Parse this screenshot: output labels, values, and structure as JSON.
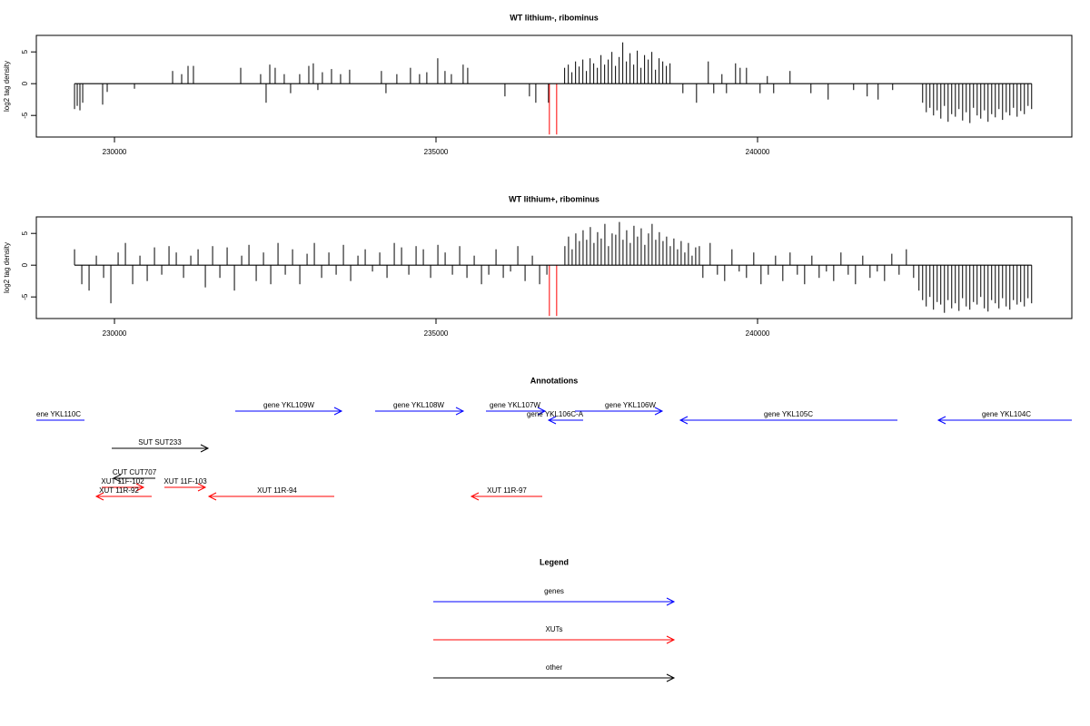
{
  "chart_data": [
    {
      "type": "bar",
      "title": "WT lithium-, ribominus",
      "y_label": "log2 tag density",
      "xlim": [
        228785,
        244887
      ],
      "ylim": [
        -8.4,
        7.6
      ],
      "xticks": [
        230000,
        235000,
        240000
      ],
      "yticks": [
        5,
        0,
        -5
      ],
      "series": [
        {
          "color": "#000000",
          "x": [
            229379,
            229421,
            229463,
            229506,
            229816,
            229887,
            230311,
            230904,
            231045,
            231144,
            231228,
            231963,
            232273,
            232358,
            232415,
            232499,
            232640,
            232739,
            232880,
            233022,
            233092,
            233163,
            233233,
            233375,
            233516,
            233657,
            234151,
            234222,
            234391,
            234603,
            234744,
            234857,
            235027,
            235140,
            235239,
            235422,
            235493,
            236072,
            236453,
            236552,
            236749,
            237000,
            237057,
            237113,
            237170,
            237226,
            237283,
            237339,
            237396,
            237452,
            237509,
            237565,
            237622,
            237678,
            237735,
            237791,
            237848,
            237904,
            237961,
            238017,
            238074,
            238130,
            238187,
            238243,
            238300,
            238356,
            238413,
            238469,
            238526,
            238582,
            238639,
            238839,
            239051,
            239234,
            239319,
            239446,
            239517,
            239658,
            239729,
            239828,
            240039,
            240152,
            240251,
            240505,
            240830,
            241098,
            241494,
            241705,
            241875,
            242101,
            242567,
            242624,
            242680,
            242737,
            242793,
            242850,
            242906,
            242963,
            243019,
            243076,
            243132,
            243189,
            243245,
            243302,
            243358,
            243415,
            243471,
            243528,
            243584,
            243641,
            243697,
            243754,
            243810,
            243867,
            243923,
            243980,
            244036,
            244093,
            244149,
            244206,
            244262
          ],
          "values": [
            -4,
            -3.5,
            -4.2,
            -3,
            -3.3,
            -1.3,
            -0.8,
            2,
            1.5,
            2.8,
            2.8,
            2.5,
            1.5,
            -3,
            3,
            2.5,
            1.5,
            -1.5,
            1.5,
            2.8,
            3.2,
            -1,
            1.8,
            2.3,
            1.5,
            2.2,
            2,
            -1.5,
            1.5,
            2.5,
            1.5,
            1.8,
            4,
            2,
            1.5,
            3,
            2.5,
            -2,
            -2,
            -3,
            -3,
            2.5,
            3,
            1.8,
            3.5,
            2.7,
            3.8,
            2,
            4,
            3.2,
            2.5,
            4.5,
            3,
            3.8,
            5,
            2.8,
            4.2,
            6.5,
            3.5,
            4.8,
            3,
            5.2,
            2.5,
            4.5,
            3.8,
            5,
            2.2,
            4,
            3.5,
            2.8,
            3.2,
            -1.5,
            -3,
            3.5,
            -1.5,
            1.5,
            -1.5,
            3.2,
            2.5,
            2.5,
            -1.5,
            1.2,
            -1.5,
            2,
            -1.5,
            -2.5,
            -1,
            -2,
            -2.5,
            -1,
            -3,
            -4.5,
            -3.8,
            -5,
            -4.2,
            -5.5,
            -3.5,
            -6,
            -4.8,
            -5.2,
            -4,
            -5.8,
            -4.5,
            -6.2,
            -3.8,
            -5,
            -5.5,
            -4.2,
            -6,
            -4.8,
            -5.3,
            -4,
            -5.7,
            -4.5,
            -5,
            -3.8,
            -5.2,
            -4.3,
            -4.8,
            -3.5,
            -4
          ]
        },
        {
          "color": "#ff0000",
          "x": [
            236763,
            236876
          ],
          "values": [
            -8,
            -8
          ]
        }
      ]
    },
    {
      "type": "bar",
      "title": "WT lithium+, ribominus",
      "y_label": "log2 tag density",
      "xlim": [
        228785,
        244887
      ],
      "ylim": [
        -8.4,
        7.6
      ],
      "xticks": [
        230000,
        235000,
        240000
      ],
      "yticks": [
        5,
        0,
        -5
      ],
      "series": [
        {
          "color": "#000000",
          "x": [
            229379,
            229492,
            229605,
            229718,
            229831,
            229944,
            230057,
            230170,
            230283,
            230396,
            230509,
            230622,
            230735,
            230848,
            230961,
            231074,
            231187,
            231300,
            231413,
            231526,
            231639,
            231752,
            231865,
            231978,
            232091,
            232204,
            232317,
            232430,
            232543,
            232656,
            232769,
            232882,
            232995,
            233108,
            233221,
            233334,
            233447,
            233560,
            233673,
            233786,
            233899,
            234012,
            234125,
            234238,
            234351,
            234464,
            234577,
            234690,
            234803,
            234916,
            235029,
            235142,
            235255,
            235368,
            235481,
            235594,
            235707,
            235820,
            235933,
            236046,
            236159,
            236272,
            236385,
            236498,
            236611,
            236724,
            237004,
            237061,
            237117,
            237174,
            237230,
            237287,
            237343,
            237400,
            237456,
            237513,
            237569,
            237626,
            237682,
            237739,
            237795,
            237852,
            237908,
            237965,
            238021,
            238078,
            238134,
            238191,
            238247,
            238304,
            238360,
            238417,
            238473,
            238530,
            238586,
            238643,
            238699,
            238756,
            238812,
            238869,
            238925,
            238982,
            239038,
            239095,
            239150,
            239263,
            239376,
            239489,
            239602,
            239715,
            239828,
            239941,
            240054,
            240167,
            240280,
            240393,
            240506,
            240619,
            240732,
            240845,
            240958,
            241071,
            241184,
            241297,
            241410,
            241523,
            241636,
            241749,
            241862,
            241975,
            242088,
            242201,
            242314,
            242427,
            242510,
            242567,
            242623,
            242680,
            242736,
            242793,
            242849,
            242906,
            242962,
            243019,
            243075,
            243132,
            243188,
            243245,
            243301,
            243358,
            243414,
            243471,
            243527,
            243584,
            243640,
            243697,
            243753,
            243810,
            243866,
            243923,
            243979,
            244036,
            244092,
            244149,
            244205,
            244262
          ],
          "values": [
            2.5,
            -3,
            -4,
            1.5,
            -2,
            -6,
            2,
            3.5,
            -3,
            1.5,
            -2.5,
            2.8,
            -1.5,
            3,
            2,
            -2,
            1.5,
            2.5,
            -3.5,
            3,
            -2,
            2.8,
            -4,
            1.5,
            3.2,
            -2.5,
            2,
            -3,
            3.5,
            -1.5,
            2.5,
            -3,
            1.8,
            3.5,
            -2,
            2,
            -1.5,
            3.2,
            -2.5,
            1.5,
            2.5,
            -1,
            2,
            -2,
            3.5,
            2.8,
            -1.5,
            3,
            2.5,
            -2,
            3.2,
            2,
            -1.5,
            3,
            -2,
            1.5,
            -3,
            -1.5,
            2.5,
            -2,
            -1,
            3,
            -2.5,
            1.5,
            -3,
            -1.5,
            3,
            4.5,
            2.5,
            5,
            3.8,
            5.5,
            4,
            6,
            3.5,
            5.2,
            4.2,
            6.5,
            3,
            5,
            4.8,
            6.8,
            4,
            5.5,
            3.5,
            6.2,
            4.5,
            5.8,
            3.2,
            5,
            6.5,
            4,
            5.2,
            3.8,
            4.5,
            3,
            4.2,
            2.5,
            3.8,
            2,
            3.5,
            1.5,
            2.8,
            3,
            -2,
            3.5,
            -1.5,
            -2.5,
            2.5,
            -1,
            -2,
            2,
            -3,
            -1.5,
            1.5,
            -2.5,
            2,
            -1.5,
            -3,
            1.5,
            -2,
            -1,
            -2.5,
            2,
            -1.5,
            -3,
            1.5,
            -2,
            -1,
            -2.5,
            1.8,
            -1.5,
            2.5,
            -2,
            -4,
            -5.5,
            -6.5,
            -5,
            -7,
            -5.8,
            -6.2,
            -7.5,
            -5.5,
            -6.8,
            -6,
            -7.2,
            -5.2,
            -6.5,
            -7,
            -5.8,
            -6.2,
            -5,
            -6.8,
            -7.3,
            -5.5,
            -6,
            -6.8,
            -5.2,
            -6.5,
            -7,
            -5.5,
            -6.2,
            -5.8,
            -6.5,
            -5.2,
            -6
          ]
        },
        {
          "color": "#ff0000",
          "x": [
            236763,
            236876
          ],
          "values": [
            -8,
            -8
          ]
        }
      ]
    }
  ],
  "annotations": {
    "title": "Annotations",
    "features": [
      "ene YKL110C",
      "gene YKL109W",
      "gene YKL108W",
      "gene YKL107W",
      "gene YKL106C-A",
      "gene YKL106W",
      "gene YKL105C",
      "gene YKL104C",
      "SUT SUT233",
      "CUT CUT707",
      "XUT 11F-102",
      "XUT 11F-103",
      "XUT 11R-92",
      "XUT 11R-94",
      "XUT 11R-97"
    ]
  },
  "legend": {
    "title": "Legend",
    "items": [
      "genes",
      "XUTs",
      "other"
    ]
  }
}
